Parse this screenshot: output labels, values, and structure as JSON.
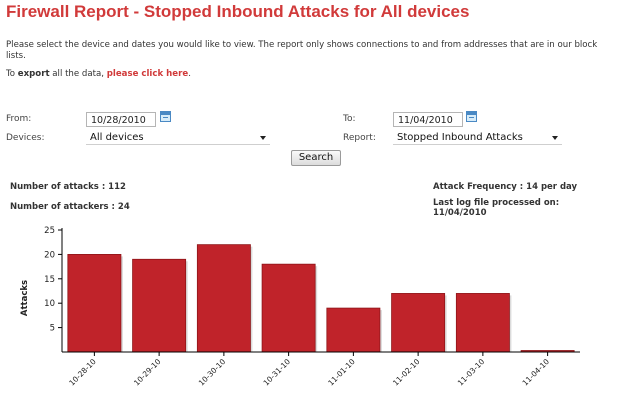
{
  "page": {
    "title": "Firewall Report - Stopped Inbound Attacks for All devices",
    "intro": "Please select the device and dates you would like to view. The report only shows connections to and from addresses that are in our block lists.",
    "export_prefix": "To ",
    "export_bold": "export",
    "export_middle": " all the data, ",
    "export_link": "please click here",
    "export_suffix": "."
  },
  "form": {
    "from_label": "From:",
    "from_value": "10/28/2010",
    "to_label": "To:",
    "to_value": "11/04/2010",
    "devices_label": "Devices:",
    "devices_value": "All devices",
    "report_label": "Report:",
    "report_value": "Stopped Inbound Attacks",
    "search_label": "Search"
  },
  "stats": {
    "attacks": "Number of attacks : 112",
    "attackers": "Number of attackers : 24",
    "frequency": "Attack Frequency : 14 per day",
    "last_log_label": "Last log file processed on:",
    "last_log_date": "11/04/2010"
  },
  "colors": {
    "title": "#d13a3a",
    "bar": "#c0232a",
    "bar_dark": "#8e1418"
  },
  "chart_data": {
    "type": "bar",
    "categories": [
      "10-28-10",
      "10-29-10",
      "10-30-10",
      "10-31-10",
      "11-01-10",
      "11-02-10",
      "11-03-10",
      "11-04-10"
    ],
    "values": [
      20,
      19,
      22,
      18,
      9,
      12,
      12,
      0
    ],
    "ylabel": "Attacks",
    "ylim": [
      0,
      25
    ],
    "yticks": [
      5,
      10,
      15,
      20,
      25
    ],
    "grid": false
  }
}
